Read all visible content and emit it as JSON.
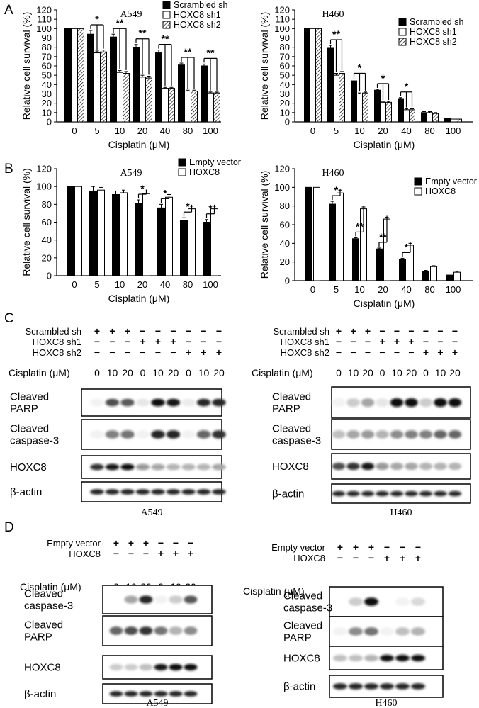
{
  "panel_letters": [
    "A",
    "B",
    "C",
    "D"
  ],
  "chart_data": [
    {
      "panel": "A",
      "type": "bar",
      "cell_line": "A549",
      "xlabel": "Cisplatin (μM)",
      "ylabel": "Relative cell survival (%)",
      "ylim": [
        0,
        120
      ],
      "yticks": [
        0,
        10,
        20,
        30,
        40,
        50,
        60,
        70,
        80,
        90,
        100,
        110,
        120
      ],
      "categories": [
        "0",
        "5",
        "10",
        "20",
        "40",
        "80",
        "100"
      ],
      "legend_position": "top-right",
      "series": [
        {
          "name": "Scrambled sh",
          "pattern": "solid",
          "values": [
            100,
            94,
            91,
            80,
            74,
            61,
            60
          ],
          "errors": [
            0,
            4,
            3,
            3,
            3,
            2,
            2
          ]
        },
        {
          "name": "HOXC8 sh1",
          "pattern": "open",
          "values": [
            100,
            74,
            53,
            48,
            36,
            33,
            31
          ],
          "errors": [
            0,
            2,
            2,
            2,
            1,
            1,
            1
          ]
        },
        {
          "name": "HOXC8 sh2",
          "pattern": "hatched",
          "values": [
            100,
            75,
            52,
            47,
            36,
            33,
            31
          ],
          "errors": [
            0,
            2,
            2,
            2,
            1,
            1,
            1
          ]
        }
      ],
      "significance": [
        "",
        "*",
        "**",
        "**",
        "**",
        "**",
        "**"
      ]
    },
    {
      "panel": "A",
      "type": "bar",
      "cell_line": "H460",
      "xlabel": "Cisplatin (μM)",
      "ylabel": "Relative cell survival (%)",
      "ylim": [
        0,
        120
      ],
      "yticks": [
        0,
        10,
        20,
        30,
        40,
        50,
        60,
        70,
        80,
        90,
        100,
        110,
        120
      ],
      "categories": [
        "0",
        "5",
        "10",
        "20",
        "40",
        "80",
        "100"
      ],
      "legend_position": "top-right",
      "series": [
        {
          "name": "Scrambled sh",
          "pattern": "solid",
          "values": [
            100,
            79,
            44,
            34,
            25,
            10,
            4
          ],
          "errors": [
            0,
            3,
            2,
            1,
            1,
            1,
            0
          ]
        },
        {
          "name": "HOXC8 sh1",
          "pattern": "open",
          "values": [
            100,
            50,
            30,
            21,
            13,
            10,
            3
          ],
          "errors": [
            0,
            2,
            1,
            1,
            1,
            1,
            0
          ]
        },
        {
          "name": "HOXC8 sh2",
          "pattern": "hatched",
          "values": [
            100,
            52,
            31,
            21,
            13,
            9,
            3
          ],
          "errors": [
            0,
            2,
            1,
            1,
            1,
            1,
            0
          ]
        }
      ],
      "significance": [
        "",
        "**",
        "*",
        "*",
        "*",
        "",
        ""
      ]
    },
    {
      "panel": "B",
      "type": "bar",
      "cell_line": "A549",
      "xlabel": "Cisplatin (μM)",
      "ylabel": "Relative cell survival (%)",
      "ylim": [
        0,
        120
      ],
      "yticks": [
        0,
        20,
        40,
        60,
        80,
        100,
        120
      ],
      "categories": [
        "0",
        "5",
        "10",
        "20",
        "40",
        "80",
        "100"
      ],
      "legend_position": "top-right",
      "series": [
        {
          "name": "Empty vector",
          "pattern": "solid",
          "values": [
            100,
            95,
            91,
            81,
            76,
            62,
            60
          ],
          "errors": [
            0,
            5,
            4,
            4,
            4,
            3,
            3
          ]
        },
        {
          "name": "HOXC8",
          "pattern": "open",
          "values": [
            100,
            96,
            93,
            92,
            88,
            75,
            75
          ],
          "errors": [
            0,
            3,
            3,
            3,
            3,
            3,
            3
          ]
        }
      ],
      "significance": [
        "",
        "",
        "",
        "*",
        "*",
        "*",
        "*"
      ]
    },
    {
      "panel": "B",
      "type": "bar",
      "cell_line": "H460",
      "xlabel": "Cisplatin (μM)",
      "ylabel": "Relative cell survival (%)",
      "ylim": [
        0,
        120
      ],
      "yticks": [
        0,
        20,
        40,
        60,
        80,
        100,
        120
      ],
      "categories": [
        "0",
        "5",
        "10",
        "20",
        "40",
        "80",
        "100"
      ],
      "legend_position": "top-right",
      "series": [
        {
          "name": "Empty vector",
          "pattern": "solid",
          "values": [
            100,
            82,
            45,
            34,
            23,
            10,
            6
          ],
          "errors": [
            0,
            3,
            1,
            1,
            1,
            1,
            0
          ]
        },
        {
          "name": "HOXC8",
          "pattern": "open",
          "values": [
            100,
            94,
            77,
            66,
            38,
            15,
            9
          ],
          "errors": [
            0,
            3,
            2,
            2,
            2,
            1,
            1
          ]
        }
      ],
      "significance": [
        "",
        "*",
        "**",
        "**",
        "*",
        "",
        ""
      ]
    }
  ],
  "blots": [
    {
      "panel": "C",
      "cell_line": "A549",
      "conditions": [
        {
          "label": "Scrambled sh",
          "marks": [
            "+",
            "+",
            "+",
            "−",
            "−",
            "−",
            "−",
            "−",
            "−"
          ]
        },
        {
          "label": "HOXC8 sh1",
          "marks": [
            "−",
            "−",
            "−",
            "+",
            "+",
            "+",
            "−",
            "−",
            "−"
          ]
        },
        {
          "label": "HOXC8 sh2",
          "marks": [
            "−",
            "−",
            "−",
            "−",
            "−",
            "−",
            "+",
            "+",
            "+"
          ]
        }
      ],
      "cisplatin_label": "Cisplatin (μM)",
      "doses": [
        "0",
        "10",
        "20",
        "0",
        "10",
        "20",
        "0",
        "10",
        "20"
      ],
      "rows": [
        {
          "label_lines": [
            "Cleaved",
            "PARP"
          ],
          "intensity": [
            0.05,
            0.7,
            0.65,
            0.1,
            0.95,
            0.9,
            0.08,
            0.85,
            0.85
          ]
        },
        {
          "label_lines": [
            "Cleaved",
            "caspase-3"
          ],
          "intensity": [
            0.05,
            0.5,
            0.55,
            0.05,
            0.85,
            0.85,
            0.05,
            0.6,
            0.8
          ]
        },
        {
          "label_lines": [
            "HOXC8"
          ],
          "intensity": [
            0.8,
            0.9,
            0.95,
            0.4,
            0.35,
            0.3,
            0.3,
            0.3,
            0.35
          ]
        },
        {
          "label_lines": [
            "β-actin"
          ],
          "intensity": [
            0.85,
            0.85,
            0.85,
            0.85,
            0.85,
            0.85,
            0.85,
            0.85,
            0.85
          ]
        }
      ]
    },
    {
      "panel": "C",
      "cell_line": "H460",
      "conditions": [
        {
          "label": "Scrambled sh",
          "marks": [
            "+",
            "+",
            "+",
            "−",
            "−",
            "−",
            "−",
            "−",
            "−"
          ]
        },
        {
          "label": "HOXC8 sh1",
          "marks": [
            "−",
            "−",
            "−",
            "+",
            "+",
            "+",
            "−",
            "−",
            "−"
          ]
        },
        {
          "label": "HOXC8 sh2",
          "marks": [
            "−",
            "−",
            "−",
            "−",
            "−",
            "−",
            "+",
            "+",
            "+"
          ]
        }
      ],
      "cisplatin_label": "Cisplatin (μM)",
      "doses": [
        "0",
        "10",
        "20",
        "0",
        "10",
        "20",
        "0",
        "10",
        "20"
      ],
      "rows": [
        {
          "label_lines": [
            "Cleaved",
            "PARP"
          ],
          "intensity": [
            0.05,
            0.2,
            0.35,
            0.1,
            0.95,
            0.95,
            0.2,
            0.95,
            0.95
          ]
        },
        {
          "label_lines": [
            "Cleaved",
            "caspase-3"
          ],
          "intensity": [
            0.25,
            0.35,
            0.4,
            0.3,
            0.45,
            0.5,
            0.5,
            0.6,
            0.6
          ]
        },
        {
          "label_lines": [
            "HOXC8"
          ],
          "intensity": [
            0.7,
            0.8,
            0.9,
            0.4,
            0.35,
            0.35,
            0.3,
            0.3,
            0.3
          ]
        },
        {
          "label_lines": [
            "β-actin"
          ],
          "intensity": [
            0.85,
            0.85,
            0.85,
            0.85,
            0.85,
            0.85,
            0.85,
            0.85,
            0.85
          ]
        }
      ]
    },
    {
      "panel": "D",
      "cell_line": "A549",
      "conditions": [
        {
          "label": "Empty vector",
          "marks": [
            "+",
            "+",
            "+",
            "−",
            "−",
            "−"
          ]
        },
        {
          "label": "HOXC8",
          "marks": [
            "−",
            "−",
            "−",
            "+",
            "+",
            "+"
          ]
        }
      ],
      "cisplatin_label": "Cisplatin (μM)",
      "doses": [
        "0",
        "10",
        "20",
        "0",
        "10",
        "20"
      ],
      "rows": [
        {
          "label_lines": [
            "Cleaved",
            "caspase-3"
          ],
          "intensity": [
            0.03,
            0.35,
            0.85,
            0.05,
            0.2,
            0.65
          ]
        },
        {
          "label_lines": [
            "Cleaved",
            "PARP"
          ],
          "intensity": [
            0.6,
            0.7,
            0.8,
            0.55,
            0.3,
            0.45
          ]
        },
        {
          "label_lines": [
            "HOXC8"
          ],
          "intensity": [
            0.2,
            0.2,
            0.25,
            0.9,
            0.95,
            0.95
          ]
        },
        {
          "label_lines": [
            "β-actin"
          ],
          "intensity": [
            0.85,
            0.85,
            0.85,
            0.85,
            0.85,
            0.85
          ]
        }
      ]
    },
    {
      "panel": "D",
      "cell_line": "H460",
      "conditions": [
        {
          "label": "Empty vector",
          "marks": [
            "+",
            "+",
            "+",
            "−",
            "−",
            "−"
          ]
        },
        {
          "label": "HOXC8",
          "marks": [
            "−",
            "−",
            "−",
            "+",
            "+",
            "+"
          ]
        }
      ],
      "cisplatin_label": "Cisplatin (μM)",
      "doses": [
        "0",
        "10",
        "20",
        "0",
        "10",
        "20"
      ],
      "rows": [
        {
          "label_lines": [
            "Cleaved",
            "caspase-3"
          ],
          "intensity": [
            0.03,
            0.2,
            0.95,
            0.02,
            0.05,
            0.15
          ]
        },
        {
          "label_lines": [
            "Cleaved",
            "PARP"
          ],
          "intensity": [
            0.05,
            0.45,
            0.55,
            0.05,
            0.25,
            0.3
          ]
        },
        {
          "label_lines": [
            "HOXC8"
          ],
          "intensity": [
            0.25,
            0.25,
            0.3,
            0.95,
            0.95,
            0.95
          ]
        },
        {
          "label_lines": [
            "β-actin"
          ],
          "intensity": [
            0.85,
            0.85,
            0.85,
            0.85,
            0.85,
            0.85
          ]
        }
      ]
    }
  ]
}
